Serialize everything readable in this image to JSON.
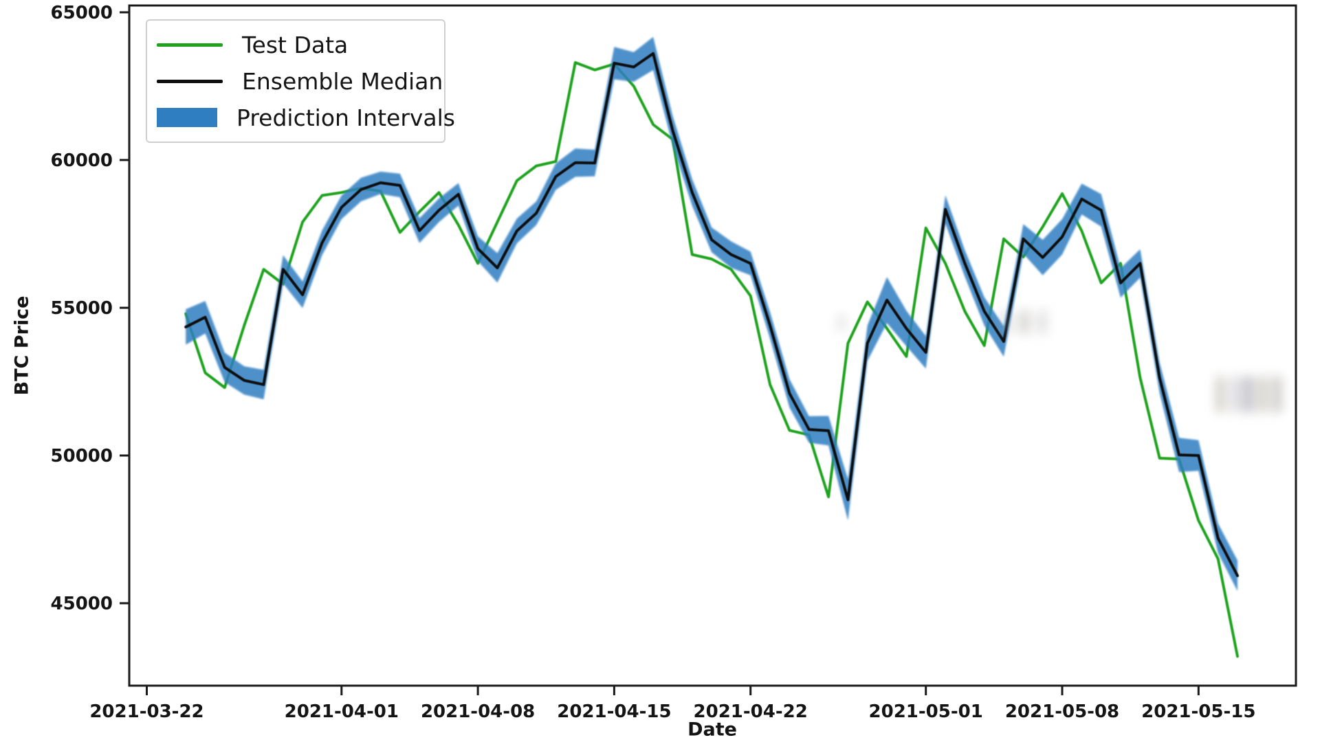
{
  "figure_bg": "#ffffff",
  "axes": {
    "xlabel": "Date",
    "ylabel": "BTC Price",
    "spine_color": "#1a1a1a",
    "tick_label_color": "#141414"
  },
  "legend": {
    "position": "upper left",
    "items": [
      {
        "label": "Test Data",
        "swatch": "line",
        "color": "#1fa31f"
      },
      {
        "label": "Ensemble Median",
        "swatch": "line",
        "color": "#0d0d0d"
      },
      {
        "label": "Prediction Intervals",
        "swatch": "patch",
        "color": "#2f7ec1"
      }
    ]
  },
  "chart_data": {
    "type": "line",
    "title": "",
    "xlabel": "Date",
    "ylabel": "BTC Price",
    "grid": false,
    "legend_position": "upper left",
    "ylim": [
      42210,
      65230
    ],
    "xlim_index": [
      -2.9,
      57.0
    ],
    "yticks": [
      45000,
      50000,
      55000,
      60000,
      65000
    ],
    "xticks": [
      "2021-03-22",
      "2021-04-01",
      "2021-04-08",
      "2021-04-15",
      "2021-04-22",
      "2021-05-01",
      "2021-05-08",
      "2021-05-15"
    ],
    "dates": [
      "2021-03-24",
      "2021-03-25",
      "2021-03-26",
      "2021-03-27",
      "2021-03-28",
      "2021-03-29",
      "2021-03-30",
      "2021-03-31",
      "2021-04-01",
      "2021-04-02",
      "2021-04-03",
      "2021-04-04",
      "2021-04-05",
      "2021-04-06",
      "2021-04-07",
      "2021-04-08",
      "2021-04-09",
      "2021-04-10",
      "2021-04-11",
      "2021-04-12",
      "2021-04-13",
      "2021-04-14",
      "2021-04-15",
      "2021-04-16",
      "2021-04-17",
      "2021-04-18",
      "2021-04-19",
      "2021-04-20",
      "2021-04-21",
      "2021-04-22",
      "2021-04-23",
      "2021-04-24",
      "2021-04-25",
      "2021-04-26",
      "2021-04-27",
      "2021-04-28",
      "2021-04-29",
      "2021-04-30",
      "2021-05-01",
      "2021-05-02",
      "2021-05-03",
      "2021-05-04",
      "2021-05-05",
      "2021-05-06",
      "2021-05-07",
      "2021-05-08",
      "2021-05-09",
      "2021-05-10",
      "2021-05-11",
      "2021-05-12",
      "2021-05-13",
      "2021-05-14",
      "2021-05-15",
      "2021-05-16",
      "2021-05-17"
    ],
    "series": [
      {
        "name": "Test Data",
        "color": "#1fa31f",
        "values": [
          54800,
          52800,
          52300,
          54400,
          56300,
          55800,
          57900,
          58800,
          58900,
          59050,
          58950,
          57550,
          58250,
          58900,
          57800,
          56500,
          57900,
          59300,
          59800,
          59950,
          63300,
          63050,
          63250,
          62500,
          61200,
          60700,
          56800,
          56650,
          56300,
          55400,
          52400,
          50850,
          50700,
          48600,
          53800,
          55200,
          54300,
          53350,
          57700,
          56500,
          54880,
          53720,
          57330,
          56720,
          57740,
          58860,
          57600,
          55840,
          56500,
          52630,
          49910,
          49880,
          47800,
          46500,
          43200
        ]
      },
      {
        "name": "Ensemble Median",
        "color": "#0d0d0d",
        "values": [
          54350,
          54680,
          52980,
          52540,
          52400,
          56300,
          55440,
          57200,
          58400,
          59000,
          59230,
          59140,
          57610,
          58300,
          58840,
          57000,
          56350,
          57600,
          58200,
          59440,
          59910,
          59900,
          63280,
          63150,
          63605,
          61000,
          58900,
          57300,
          56800,
          56500,
          54400,
          52100,
          50880,
          50840,
          48500,
          53800,
          55260,
          54300,
          53490,
          58330,
          56500,
          54880,
          53860,
          57330,
          56700,
          57400,
          58680,
          58300,
          55840,
          56500,
          52630,
          50020,
          50000,
          47200,
          45930
        ]
      }
    ],
    "prediction_intervals": {
      "name": "Prediction Intervals",
      "color": "#2f7ec1",
      "opacity": 0.85,
      "lower": [
        53750,
        54130,
        52480,
        52060,
        51900,
        55820,
        54990,
        56780,
        58000,
        58600,
        58850,
        58740,
        57190,
        57900,
        58460,
        56580,
        55850,
        57180,
        57800,
        58990,
        59430,
        59450,
        62730,
        62650,
        63045,
        60500,
        58450,
        56880,
        56350,
        56100,
        53950,
        51620,
        50430,
        50340,
        47800,
        53200,
        54480,
        53700,
        52940,
        57850,
        56050,
        54400,
        53340,
        56830,
        56100,
        56800,
        58160,
        57750,
        55340,
        56020,
        52110,
        49440,
        49480,
        46700,
        45410
      ],
      "upper": [
        54950,
        55230,
        53480,
        53020,
        52900,
        56780,
        55890,
        57620,
        58800,
        59400,
        59610,
        59540,
        58030,
        58700,
        59220,
        57420,
        56850,
        58020,
        58600,
        59890,
        60390,
        60350,
        63830,
        63650,
        64165,
        61500,
        59350,
        57720,
        57250,
        56900,
        54850,
        52580,
        51330,
        51340,
        49200,
        54400,
        56040,
        54900,
        54040,
        58810,
        56950,
        55360,
        54380,
        57830,
        57300,
        58000,
        59200,
        58850,
        56340,
        56980,
        53150,
        50600,
        50520,
        47700,
        46450
      ]
    }
  }
}
